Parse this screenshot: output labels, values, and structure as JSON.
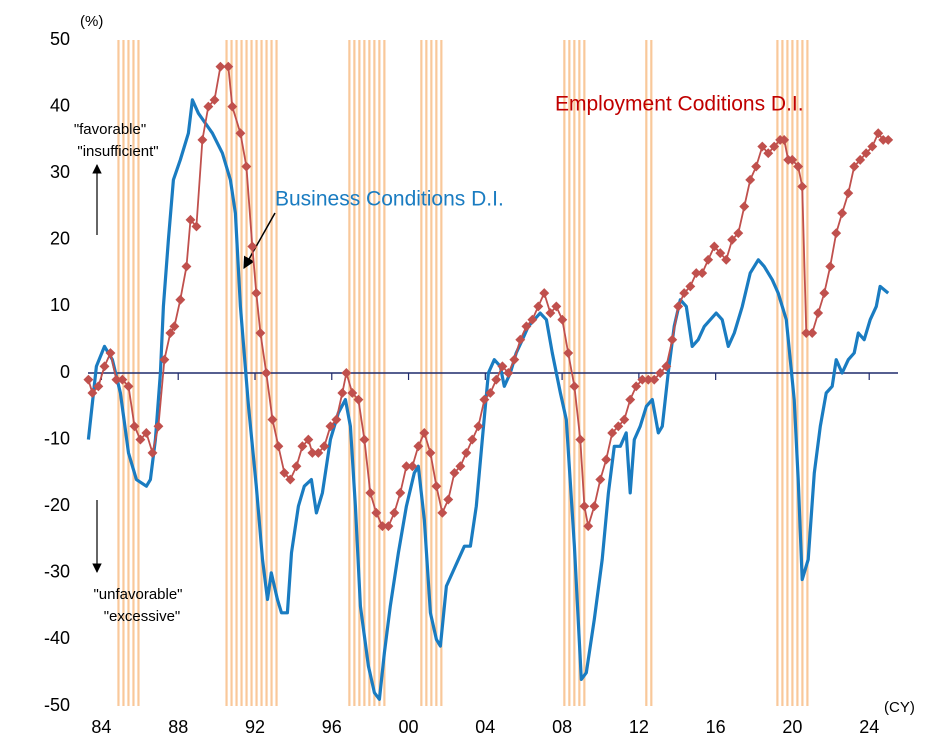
{
  "chart_data": {
    "type": "line",
    "ylim": [
      -50,
      50
    ],
    "yticks": [
      -50,
      -40,
      -30,
      -20,
      -10,
      0,
      10,
      20,
      30,
      40,
      50
    ],
    "xlim": [
      1983.3,
      2025.5
    ],
    "xticks": [
      {
        "value": 1984,
        "label": "84"
      },
      {
        "value": 1988,
        "label": "88"
      },
      {
        "value": 1992,
        "label": "92"
      },
      {
        "value": 1996,
        "label": "96"
      },
      {
        "value": 2000,
        "label": "00"
      },
      {
        "value": 2004,
        "label": "04"
      },
      {
        "value": 2008,
        "label": "08"
      },
      {
        "value": 2012,
        "label": "12"
      },
      {
        "value": 2016,
        "label": "16"
      },
      {
        "value": 2020,
        "label": "20"
      },
      {
        "value": 2024,
        "label": "24"
      }
    ],
    "shade_color": "#f9c89a",
    "shaded_periods": [
      [
        1984.83,
        1986.03
      ],
      [
        1990.46,
        1993.32
      ],
      [
        1996.86,
        1998.79
      ],
      [
        2000.61,
        2001.71
      ],
      [
        2008.06,
        2009.21
      ],
      [
        2012.33,
        2012.85
      ],
      [
        2019.16,
        2020.98
      ]
    ],
    "annotations": [
      "(%)",
      "(CY)",
      "\"favorable\"",
      "\"insufficient\"",
      "\"unfavorable\"",
      "\"excessive\""
    ],
    "series": [
      {
        "name": "Business Conditions D.I.",
        "color": "#1a7cc1",
        "label_color": "#1a7cc1",
        "markers": false,
        "x": [
          1983.32,
          1983.74,
          1984.16,
          1984.57,
          1984.99,
          1985.41,
          1985.82,
          1986.34,
          1986.55,
          1986.81,
          1987.07,
          1987.23,
          1987.49,
          1987.75,
          1988.11,
          1988.53,
          1988.74,
          1989.05,
          1989.78,
          1990.3,
          1990.72,
          1990.98,
          1991.24,
          1991.66,
          1992.07,
          1992.39,
          1992.65,
          1992.85,
          1993.17,
          1993.38,
          1993.69,
          1993.9,
          1994.26,
          1994.57,
          1994.94,
          1995.2,
          1995.51,
          1995.93,
          1996.34,
          1996.71,
          1996.97,
          1997.23,
          1997.49,
          1997.91,
          1998.22,
          1998.48,
          1998.74,
          1999.05,
          1999.47,
          1999.89,
          2000.3,
          2000.51,
          2000.82,
          2001.14,
          2001.45,
          2001.66,
          2001.97,
          2002.44,
          2002.91,
          2003.22,
          2003.53,
          2003.84,
          2004.16,
          2004.47,
          2004.78,
          2004.99,
          2005.3,
          2005.61,
          2005.93,
          2006.24,
          2006.55,
          2006.86,
          2007.18,
          2007.49,
          2007.91,
          2008.22,
          2008.64,
          2009.0,
          2009.26,
          2009.68,
          2010.09,
          2010.41,
          2010.72,
          2011.03,
          2011.34,
          2011.55,
          2011.76,
          2012.07,
          2012.39,
          2012.7,
          2013.01,
          2013.22,
          2013.53,
          2013.84,
          2014.16,
          2014.47,
          2014.78,
          2015.09,
          2015.41,
          2015.72,
          2016.03,
          2016.34,
          2016.66,
          2016.97,
          2017.39,
          2017.8,
          2018.22,
          2018.53,
          2018.95,
          2019.26,
          2019.68,
          2020.09,
          2020.3,
          2020.51,
          2020.82,
          2021.14,
          2021.45,
          2021.76,
          2022.07,
          2022.28,
          2022.59,
          2022.91,
          2023.22,
          2023.43,
          2023.74,
          2024.05,
          2024.37,
          2024.57,
          2024.99
        ],
        "values": [
          -10,
          1,
          4,
          2,
          -3,
          -12,
          -16,
          -17,
          -16,
          -10,
          0,
          10,
          20,
          29,
          32,
          36,
          41,
          39,
          36,
          33,
          29,
          24,
          10,
          -5,
          -17,
          -28,
          -34,
          -30,
          -34,
          -36,
          -36,
          -27,
          -20,
          -17,
          -16,
          -21,
          -18,
          -10,
          -6,
          -4,
          -8,
          -20,
          -35,
          -44,
          -48,
          -49,
          -42,
          -35,
          -27,
          -20,
          -15,
          -14,
          -22,
          -36,
          -40,
          -41,
          -32,
          -29,
          -26,
          -26,
          -20,
          -10,
          0,
          2,
          1,
          -2,
          0,
          3,
          5,
          7,
          8,
          9,
          8,
          3,
          -3,
          -7,
          -26,
          -46,
          -45,
          -37,
          -28,
          -18,
          -11,
          -11,
          -9,
          -18,
          -10,
          -8,
          -5,
          -4,
          -9,
          -8,
          0,
          7,
          11,
          10,
          4,
          5,
          7,
          8,
          9,
          8,
          4,
          6,
          10,
          15,
          17,
          16,
          14,
          12,
          8,
          -4,
          -16,
          -31,
          -28,
          -15,
          -8,
          -3,
          -2,
          2,
          0,
          2,
          3,
          6,
          5,
          8,
          10,
          13,
          12
        ]
      },
      {
        "name": "Employment Coditions D.I.",
        "color": "#c0504d",
        "label_color": "#c00000",
        "markers": true,
        "x": [
          1983.32,
          1983.53,
          1983.84,
          1984.16,
          1984.47,
          1984.78,
          1985.09,
          1985.41,
          1985.72,
          1986.03,
          1986.34,
          1986.66,
          1986.97,
          1987.28,
          1987.59,
          1987.8,
          1988.11,
          1988.43,
          1988.64,
          1988.95,
          1989.26,
          1989.57,
          1989.89,
          1990.2,
          1990.61,
          1990.82,
          1991.24,
          1991.55,
          1991.86,
          1992.07,
          1992.28,
          1992.59,
          1992.91,
          1993.22,
          1993.53,
          1993.84,
          1994.16,
          1994.47,
          1994.78,
          1994.99,
          1995.3,
          1995.61,
          1995.93,
          1996.24,
          1996.55,
          1996.76,
          1997.07,
          1997.39,
          1997.7,
          1998.01,
          1998.32,
          1998.64,
          1998.95,
          1999.26,
          1999.57,
          1999.89,
          2000.2,
          2000.51,
          2000.82,
          2001.14,
          2001.45,
          2001.76,
          2002.07,
          2002.39,
          2002.7,
          2003.01,
          2003.32,
          2003.64,
          2003.95,
          2004.26,
          2004.57,
          2004.89,
          2005.2,
          2005.51,
          2005.82,
          2006.14,
          2006.45,
          2006.76,
          2007.07,
          2007.39,
          2007.7,
          2008.01,
          2008.32,
          2008.64,
          2008.95,
          2009.16,
          2009.36,
          2009.68,
          2009.99,
          2010.3,
          2010.61,
          2010.93,
          2011.24,
          2011.55,
          2011.86,
          2012.18,
          2012.49,
          2012.8,
          2013.11,
          2013.43,
          2013.74,
          2014.05,
          2014.36,
          2014.68,
          2014.99,
          2015.3,
          2015.61,
          2015.93,
          2016.24,
          2016.55,
          2016.86,
          2017.18,
          2017.49,
          2017.8,
          2018.11,
          2018.43,
          2018.74,
          2019.05,
          2019.36,
          2019.57,
          2019.78,
          2019.99,
          2020.3,
          2020.51,
          2020.72,
          2021.03,
          2021.34,
          2021.66,
          2021.97,
          2022.28,
          2022.59,
          2022.91,
          2023.22,
          2023.53,
          2023.84,
          2024.16,
          2024.47,
          2024.73,
          2024.99
        ],
        "values": [
          -1,
          -3,
          -2,
          1,
          3,
          -1,
          -1,
          -2,
          -8,
          -10,
          -9,
          -12,
          -8,
          2,
          6,
          7,
          11,
          16,
          23,
          22,
          35,
          40,
          41,
          46,
          46,
          40,
          36,
          31,
          19,
          12,
          6,
          0,
          -7,
          -11,
          -15,
          -16,
          -14,
          -11,
          -10,
          -12,
          -12,
          -11,
          -8,
          -7,
          -3,
          0,
          -3,
          -4,
          -10,
          -18,
          -21,
          -23,
          -23,
          -21,
          -18,
          -14,
          -14,
          -11,
          -9,
          -12,
          -17,
          -21,
          -19,
          -15,
          -14,
          -12,
          -10,
          -8,
          -4,
          -3,
          -1,
          1,
          0,
          2,
          5,
          7,
          8,
          10,
          12,
          9,
          10,
          8,
          3,
          -2,
          -10,
          -20,
          -23,
          -20,
          -16,
          -13,
          -9,
          -8,
          -7,
          -4,
          -2,
          -1,
          -1,
          -1,
          0,
          1,
          5,
          10,
          12,
          13,
          15,
          15,
          17,
          19,
          18,
          17,
          20,
          21,
          25,
          29,
          31,
          34,
          33,
          34,
          35,
          35,
          32,
          32,
          31,
          28,
          6,
          6,
          9,
          12,
          16,
          21,
          24,
          27,
          31,
          32,
          33,
          34,
          36,
          35,
          35
        ]
      }
    ]
  }
}
